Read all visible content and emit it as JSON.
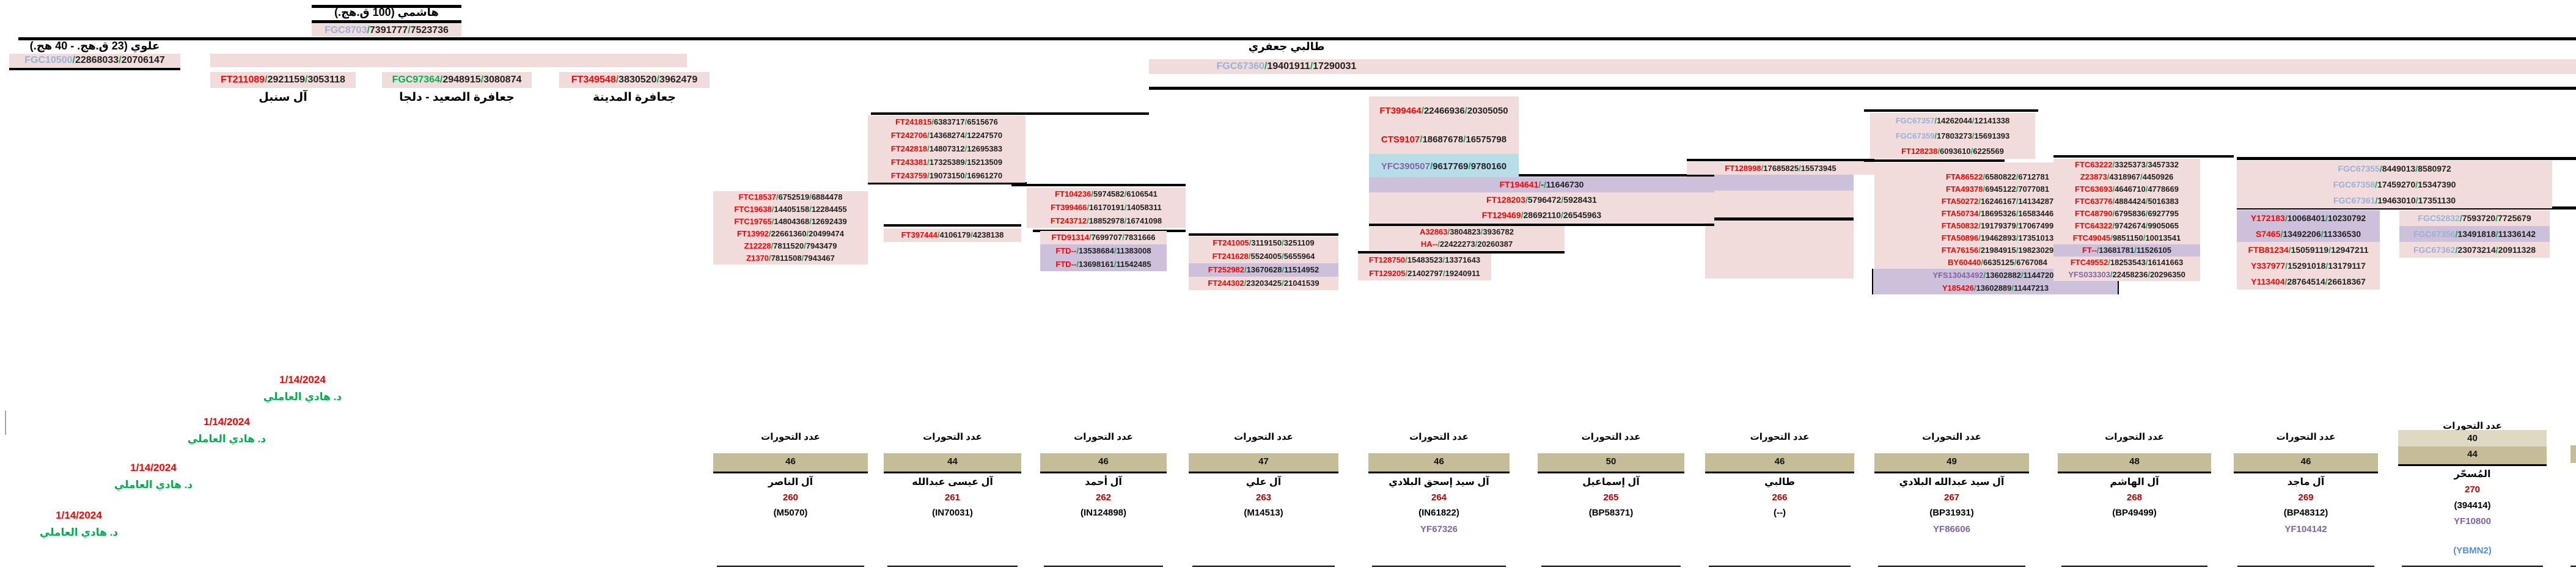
{
  "ancestors": {
    "hashimi": {
      "title": "هاشمي (100 ق.هج.)",
      "snp": {
        "n": "FGC8703",
        "c": "blue",
        "a": "7391777",
        "b": "7523736"
      }
    },
    "alawi": {
      "title": "علوي (23 ق.هج. - 40 هج.)",
      "snp": {
        "n": "FGC10500",
        "c": "blue",
        "a": "22868033",
        "b": "20706147"
      }
    },
    "talibi": {
      "title": "طالبي جعفري",
      "snp": {
        "n": "FGC67360",
        "c": "blue",
        "a": "19401911",
        "b": "17290031"
      }
    }
  },
  "branches": [
    {
      "snp": {
        "n": "FT211089",
        "c": "red",
        "a": "2921159",
        "b": "3053118"
      },
      "label": "آل سنبل"
    },
    {
      "snp": {
        "n": "FGC97364",
        "c": "green",
        "a": "2948915",
        "b": "3080874"
      },
      "label": "جعافرة الصعيد - دلجا"
    },
    {
      "snp": {
        "n": "FT349548",
        "c": "red",
        "a": "3830520",
        "b": "3962479"
      },
      "label": "جعافرة المدينة"
    }
  ],
  "groups": {
    "tsubA": [
      {
        "n": "FT399464",
        "c": "red",
        "a": "22466936",
        "b": "20305050",
        "bg": "pink"
      },
      {
        "n": "CTS9107",
        "c": "red",
        "a": "18687678",
        "b": "16575798",
        "bg": "pink"
      }
    ],
    "tsubB": [
      {
        "n": "YFC390507",
        "c": "purple",
        "a": "9617769",
        "b": "9780160",
        "bg": "blue"
      }
    ],
    "g1": [
      {
        "n": "FTC18537",
        "c": "red",
        "a": "6752519",
        "b": "6884478",
        "bg": "pink"
      },
      {
        "n": "FTC19638",
        "c": "red",
        "a": "14405158",
        "b": "12284455",
        "bg": "pink"
      },
      {
        "n": "FTC19765",
        "c": "red",
        "a": "14804368",
        "b": "12692439",
        "bg": "pink"
      },
      {
        "n": "FT13992",
        "c": "red",
        "a": "22661360",
        "b": "20499474",
        "bg": "pink"
      },
      {
        "n": "Z12228",
        "c": "red",
        "a": "7811520",
        "b": "7943479",
        "bg": "pink"
      },
      {
        "n": "Z1370",
        "c": "red",
        "a": "7811508",
        "b": "7943467",
        "bg": "pink"
      }
    ],
    "g2": [
      {
        "n": "FT241815",
        "c": "red",
        "a": "6383717",
        "b": "6515676",
        "bg": "pink"
      },
      {
        "n": "FT242706",
        "c": "red",
        "a": "14368274",
        "b": "12247570",
        "bg": "pink"
      },
      {
        "n": "FT242818",
        "c": "red",
        "a": "14807312",
        "b": "12695383",
        "bg": "pink"
      },
      {
        "n": "FT243381",
        "c": "red",
        "a": "17325389",
        "b": "15213509",
        "bg": "pink"
      },
      {
        "n": "FT243759",
        "c": "red",
        "a": "19073150",
        "b": "16961270",
        "bg": "pink"
      }
    ],
    "g3": [
      {
        "n": "FT104236",
        "c": "red",
        "a": "5974582",
        "b": "6106541",
        "bg": "pink"
      },
      {
        "n": "FT399466",
        "c": "red",
        "a": "16170191",
        "b": "14058311",
        "bg": "pink"
      },
      {
        "n": "FT243712",
        "c": "red",
        "a": "18852978",
        "b": "16741098",
        "bg": "pink"
      }
    ],
    "g4": [
      {
        "n": "FT397444",
        "c": "red",
        "a": "4106179",
        "b": "4238138",
        "bg": "pink"
      }
    ],
    "g5": [
      {
        "n": "FTD91314",
        "c": "red",
        "a": "7699707",
        "b": "7831666",
        "bg": "pink"
      },
      {
        "n": "FTD--",
        "c": "red",
        "a": "13538684",
        "b": "11383008",
        "bg": "lav"
      },
      {
        "n": "FTD--",
        "c": "red",
        "a": "13698161",
        "b": "11542485",
        "bg": "lav"
      }
    ],
    "g6": [
      {
        "n": "FT241005",
        "c": "red",
        "a": "3119150",
        "b": "3251109",
        "bg": "pink"
      },
      {
        "n": "FT241628",
        "c": "red",
        "a": "5524005",
        "b": "5655964",
        "bg": "pink"
      },
      {
        "n": "FT252982",
        "c": "red",
        "a": "13670628",
        "b": "11514952",
        "bg": "lav"
      },
      {
        "n": "FT244302",
        "c": "red",
        "a": "23203425",
        "b": "21041539",
        "bg": "pink"
      }
    ],
    "g7": [
      {
        "n": "FT194641",
        "c": "red",
        "a": "-",
        "b": "11646730",
        "bg": "lav"
      },
      {
        "n": "FT128203",
        "c": "red",
        "a": "5796472",
        "b": "5928431",
        "bg": "pink"
      },
      {
        "n": "FT129469",
        "c": "red",
        "a": "28692110",
        "b": "26545963",
        "bg": "pink"
      }
    ],
    "g8": [
      {
        "n": "A32863",
        "c": "red",
        "a": "3804823",
        "b": "3936782",
        "bg": "pink"
      },
      {
        "n": "HA--",
        "c": "red",
        "a": "22422273",
        "b": "20260387",
        "bg": "pink"
      }
    ],
    "g9": [
      {
        "n": "FT128750",
        "c": "red",
        "a": "15483523",
        "b": "13371643",
        "bg": "pink"
      },
      {
        "n": "FT129205",
        "c": "red",
        "a": "21402797",
        "b": "19240911",
        "bg": "pink"
      }
    ],
    "g10": [
      {
        "n": "FT128998",
        "c": "red",
        "a": "17685825",
        "b": "15573945",
        "bg": "pink"
      }
    ],
    "g11": [
      {
        "n": "FGC67357",
        "c": "blue",
        "a": "14262044",
        "b": "12141338",
        "bg": "pink"
      },
      {
        "n": "FGC67359",
        "c": "blue",
        "a": "17803273",
        "b": "15691393",
        "bg": "pink"
      },
      {
        "n": "FT128238",
        "c": "red",
        "a": "6093610",
        "b": "6225569",
        "bg": "pink"
      }
    ],
    "g12": [
      {
        "n": "FTA86522",
        "c": "red",
        "a": "6580822",
        "b": "6712781",
        "bg": "pink"
      },
      {
        "n": "FTA49378",
        "c": "red",
        "a": "6945122",
        "b": "7077081",
        "bg": "pink"
      },
      {
        "n": "FTA50272",
        "c": "red",
        "a": "16246167",
        "b": "14134287",
        "bg": "pink"
      },
      {
        "n": "FTA50734",
        "c": "red",
        "a": "18695326",
        "b": "16583446",
        "bg": "pink"
      },
      {
        "n": "FTA50832",
        "c": "red",
        "a": "19179379",
        "b": "17067499",
        "bg": "pink"
      },
      {
        "n": "FTA50896",
        "c": "red",
        "a": "19462893",
        "b": "17351013",
        "bg": "pink"
      },
      {
        "n": "FTA76156",
        "c": "red",
        "a": "21984915",
        "b": "19823029",
        "bg": "pink"
      },
      {
        "n": "BY60440",
        "c": "red",
        "a": "6635125",
        "b": "6767084",
        "bg": "pink"
      }
    ],
    "g12b": [
      {
        "n": "YFS13043492",
        "c": "purple",
        "a": "13602882",
        "b": "11447206",
        "bg": "lav"
      },
      {
        "n": "Y185426",
        "c": "red",
        "a": "13602889",
        "b": "11447213",
        "bg": "lav"
      }
    ],
    "g13": [
      {
        "n": "FTC63222",
        "c": "red",
        "a": "3325373",
        "b": "3457332",
        "bg": "pink"
      },
      {
        "n": "Z23873",
        "c": "red",
        "a": "4318967",
        "b": "4450926",
        "bg": "pink"
      },
      {
        "n": "FTC63693",
        "c": "red",
        "a": "4646710",
        "b": "4778669",
        "bg": "pink"
      },
      {
        "n": "FTC63776",
        "c": "red",
        "a": "4884424",
        "b": "5016383",
        "bg": "pink"
      },
      {
        "n": "FTC48790",
        "c": "red",
        "a": "6795836",
        "b": "6927795",
        "bg": "pink"
      },
      {
        "n": "FTC64322",
        "c": "red",
        "a": "9742674",
        "b": "9905065",
        "bg": "pink"
      },
      {
        "n": "FTC49045",
        "c": "red",
        "a": "9851150",
        "b": "10013541",
        "bg": "pink"
      },
      {
        "n": "FT--",
        "c": "red",
        "a": "13681781",
        "b": "11526105",
        "bg": "lav"
      },
      {
        "n": "FTC49552",
        "c": "red",
        "a": "18253543",
        "b": "16141663",
        "bg": "pink"
      },
      {
        "n": "YFS033303",
        "c": "purple",
        "a": "22458236",
        "b": "20296350",
        "bg": "pink"
      }
    ],
    "g14": [
      {
        "n": "FGC67355",
        "c": "blue",
        "a": "8449013",
        "b": "8580972",
        "bg": "pink"
      },
      {
        "n": "FGC67358",
        "c": "blue",
        "a": "17459270",
        "b": "15347390",
        "bg": "pink"
      },
      {
        "n": "FGC67361",
        "c": "blue",
        "a": "19463010",
        "b": "17351130",
        "bg": "pink"
      }
    ],
    "g15": [
      {
        "n": "Y172183",
        "c": "red",
        "a": "10068401",
        "b": "10230792",
        "bg": "lav"
      },
      {
        "n": "S7465",
        "c": "red",
        "a": "13492206",
        "b": "11336530",
        "bg": "lav"
      },
      {
        "n": "FTB81234",
        "c": "red",
        "a": "15059119",
        "b": "12947211",
        "bg": "pink"
      },
      {
        "n": "Y337977",
        "c": "red",
        "a": "15291018",
        "b": "13179117",
        "bg": "pink"
      },
      {
        "n": "Y113404",
        "c": "red",
        "a": "28764514",
        "b": "26618367",
        "bg": "pink"
      }
    ],
    "g16": [
      {
        "n": "FGC52832",
        "c": "blue",
        "a": "7593720",
        "b": "7725679",
        "bg": "pink"
      },
      {
        "n": "FGC67356",
        "c": "blue",
        "a": "13491818",
        "b": "11336142",
        "bg": "lav"
      },
      {
        "n": "FGC67362",
        "c": "blue",
        "a": "23073214",
        "b": "20911328",
        "bg": "pink"
      }
    ]
  },
  "bottom": {
    "header": "عدد التحورات",
    "columns": [
      {
        "count": "46",
        "name": "آل الناصر",
        "num": "260",
        "id": "(M5070)"
      },
      {
        "count": "44",
        "name": "آل عيسى عبدالله",
        "num": "261",
        "id": "(IN70031)"
      },
      {
        "count": "46",
        "name": "آل أحمد",
        "num": "262",
        "id": "(IN124898)"
      },
      {
        "count": "47",
        "name": "آل علي",
        "num": "263",
        "id": "(M14513)"
      },
      {
        "count": "46",
        "name": "آل سيد إسحق البلادي",
        "num": "264",
        "id": "(IN61822)",
        "yf": "YF67326"
      },
      {
        "count": "50",
        "name": "آل إسماعيل",
        "num": "265",
        "id": "(BP58371)"
      },
      {
        "count": "46",
        "name": "طالبي",
        "num": "266",
        "id": "(--)"
      },
      {
        "count": "49",
        "name": "آل سيد عبدالله البلادي",
        "num": "267",
        "id": "(BP31931)",
        "yf": "YF86606"
      },
      {
        "count": "48",
        "name": "آل الهاشم",
        "num": "268",
        "id": "(BP49499)"
      },
      {
        "count": "46",
        "name": "آل ماجد",
        "num": "269",
        "id": "(BP48312)",
        "yf": "YF104142"
      },
      {
        "count": "44",
        "count2": "40",
        "name": "المُسحّر",
        "num": "270",
        "id": "(394414)",
        "yf": "YF10800",
        "extra": "(YBMN2)"
      }
    ]
  },
  "signatures": [
    {
      "date": "1/14/2024",
      "name": "د. هادي العاملي"
    },
    {
      "date": "1/14/2024",
      "name": "د. هادي العاملي"
    },
    {
      "date": "1/14/2024",
      "name": "د. هادي العاملي"
    },
    {
      "date": "1/14/2024",
      "name": "د. هادي العاملي"
    }
  ],
  "colors": {
    "pink": "#F2DCDB",
    "lav": "#CCC0DA",
    "blue": "#B7DEE8",
    "tan": "#C4BD97",
    "tan_light": "#DDD9C3",
    "red": "#FF0000",
    "snp_blue": "#95B3D7",
    "purple": "#8064A2",
    "green": "#00B050",
    "count_red": "#C00000",
    "link_blue": "#558ED5",
    "gray": "#A6A6A6"
  }
}
